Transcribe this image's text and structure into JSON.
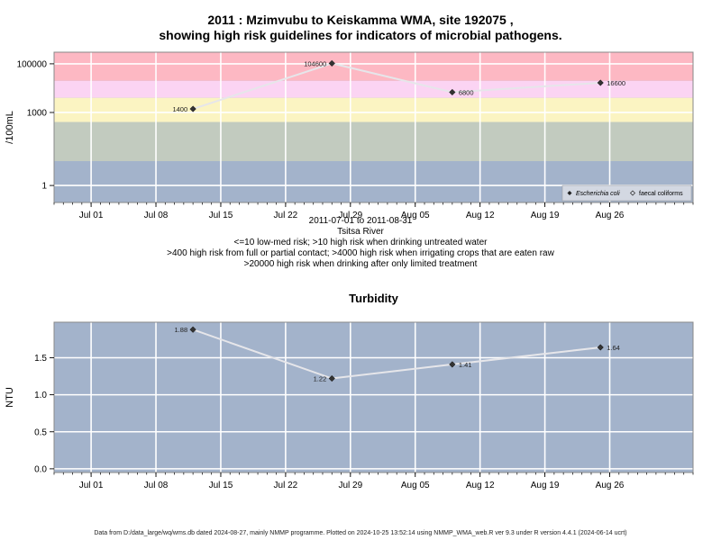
{
  "main_title_line1": "2011 : Mzimvubu to Keiskamma WMA, site 192075 ,",
  "main_title_line2": "showing high risk guidelines for indicators of microbial pathogens.",
  "captions": [
    "2011-07-01 to 2011-08-31",
    "Tsitsa River",
    "<=10 low-med risk; >10 high risk when drinking untreated water",
    ">400 high risk from full or partial contact; >4000 high risk when irrigating crops that are eaten raw",
    ">20000 high risk when drinking after only limited treatment"
  ],
  "footer": "Data from D:/data_large/wq/wms.db dated 2024-08-27, mainly NMMP programme. Plotted on 2024-10-25 13:52:14 using NMMP_WMA_web.R ver 9.3 under R version 4.4.1 (2024-06-14 ucrt)",
  "colors": {
    "panel_bg": "#a3b3cb",
    "band_red": "#fdb8c3",
    "band_pink": "#fbd4f3",
    "band_yellow": "#fbf4c2",
    "band_green": "#c2cbbf",
    "line": "#e6e6ea",
    "point": "#333333"
  },
  "chart_data": [
    {
      "type": "line",
      "title": "",
      "ylabel": "/100mL",
      "y_scale": "log10",
      "ylim": [
        0.2,
        300000
      ],
      "yticks": [
        1,
        1000,
        100000
      ],
      "ytick_labels": [
        "1",
        "1000",
        "100000"
      ],
      "xlim": [
        "2011-06-27",
        "2011-09-04"
      ],
      "xticks": [
        "2011-07-01",
        "2011-07-08",
        "2011-07-15",
        "2011-07-22",
        "2011-07-29",
        "2011-08-05",
        "2011-08-12",
        "2011-08-19",
        "2011-08-26"
      ],
      "xtick_labels": [
        "Jul 01",
        "Jul 08",
        "Jul 15",
        "Jul 22",
        "Jul 29",
        "Aug 05",
        "Aug 12",
        "Aug 19",
        "Aug 26"
      ],
      "guideline_bands": [
        {
          "from": 20000,
          "to": 300000,
          "color": "#fdb8c3"
        },
        {
          "from": 4000,
          "to": 20000,
          "color": "#fbd4f3"
        },
        {
          "from": 400,
          "to": 4000,
          "color": "#fbf4c2"
        },
        {
          "from": 10,
          "to": 400,
          "color": "#c2cbbf"
        },
        {
          "from": 0.2,
          "to": 10,
          "color": "#a3b3cb"
        }
      ],
      "series": [
        {
          "name": "Escherichia coli",
          "x": [
            "2011-07-12",
            "2011-07-27",
            "2011-08-09",
            "2011-08-25"
          ],
          "y": [
            1400,
            104600,
            6800,
            16600
          ],
          "labels": [
            "1400",
            "104600",
            "6800",
            "16600"
          ]
        }
      ],
      "legend": {
        "position": "bottom-right",
        "entries": [
          "Escherichia coli",
          "faecal coliforms"
        ]
      },
      "grid": true
    },
    {
      "type": "line",
      "title": "Turbidity",
      "ylabel": "NTU",
      "y_scale": "linear",
      "ylim": [
        -0.05,
        1.98
      ],
      "yticks": [
        0,
        0.5,
        1,
        1.5
      ],
      "ytick_labels": [
        "0.0",
        "0.5",
        "1.0",
        "1.5"
      ],
      "xlim": [
        "2011-06-27",
        "2011-09-04"
      ],
      "xticks": [
        "2011-07-01",
        "2011-07-08",
        "2011-07-15",
        "2011-07-22",
        "2011-07-29",
        "2011-08-05",
        "2011-08-12",
        "2011-08-19",
        "2011-08-26"
      ],
      "xtick_labels": [
        "Jul 01",
        "Jul 08",
        "Jul 15",
        "Jul 22",
        "Jul 29",
        "Aug 05",
        "Aug 12",
        "Aug 19",
        "Aug 26"
      ],
      "series": [
        {
          "x": [
            "2011-07-12",
            "2011-07-27",
            "2011-08-09",
            "2011-08-25"
          ],
          "y": [
            1.88,
            1.22,
            1.41,
            1.64
          ],
          "labels": [
            "1.88",
            "1.22",
            "1.41",
            "1.64"
          ]
        }
      ],
      "grid": true
    }
  ]
}
